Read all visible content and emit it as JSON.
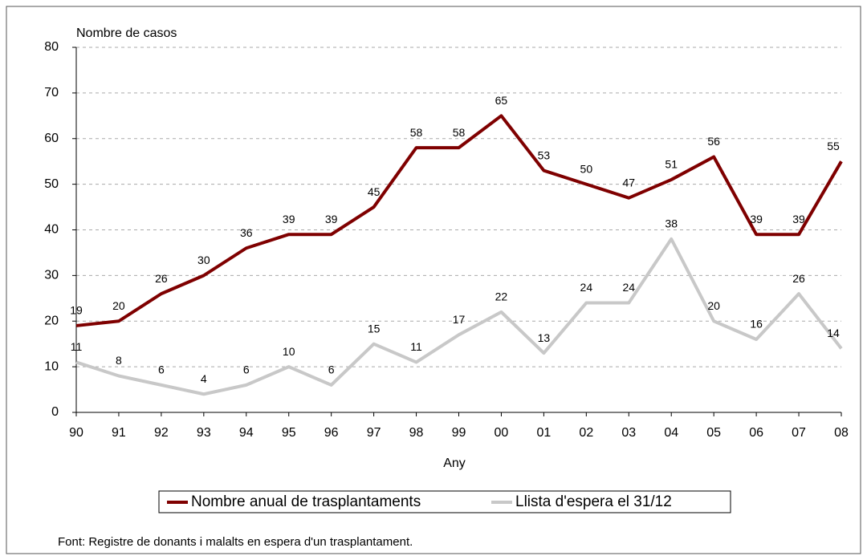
{
  "chart_data": {
    "type": "line",
    "y_label": "Nombre de casos",
    "x_label": "Any",
    "categories": [
      "90",
      "91",
      "92",
      "93",
      "94",
      "95",
      "96",
      "97",
      "98",
      "99",
      "00",
      "01",
      "02",
      "03",
      "04",
      "05",
      "06",
      "07",
      "08"
    ],
    "series": [
      {
        "name": "Nombre anual de trasplantaments",
        "color": "#7f0000",
        "values": [
          19,
          20,
          26,
          30,
          36,
          39,
          39,
          45,
          58,
          58,
          65,
          53,
          50,
          47,
          51,
          56,
          39,
          39,
          55
        ]
      },
      {
        "name": "Llista d'espera el 31/12",
        "color": "#c8c8c8",
        "values": [
          11,
          8,
          6,
          4,
          6,
          10,
          6,
          15,
          11,
          17,
          22,
          13,
          24,
          24,
          38,
          20,
          16,
          26,
          14
        ]
      }
    ],
    "ylim": [
      0,
      80
    ],
    "yticks": [
      0,
      10,
      20,
      30,
      40,
      50,
      60,
      70,
      80
    ],
    "grid": true,
    "source": "Font: Registre de donants i malalts en espera d'un trasplantament."
  }
}
